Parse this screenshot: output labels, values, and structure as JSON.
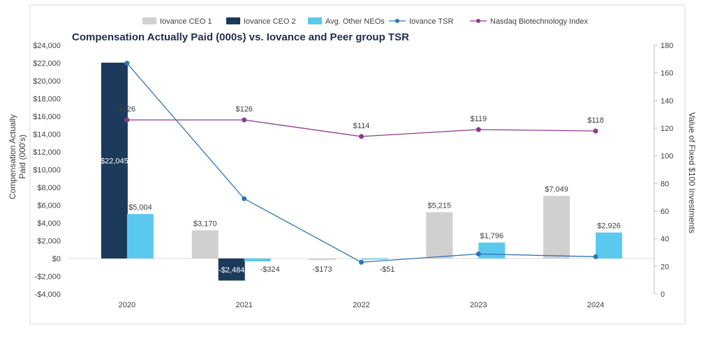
{
  "chart_data": {
    "type": "bar+line",
    "title": "Compensation Actually Paid (000s) vs. Iovance and Peer group TSR",
    "categories": [
      "2020",
      "2021",
      "2022",
      "2023",
      "2024"
    ],
    "ylabel_left_line1": "Compensation Actually",
    "ylabel_left_line2": "Paid (000's)",
    "ylabel_right": "Value of Fixed $100 Investments",
    "ylim_left": [
      -4000,
      24000
    ],
    "ylim_right": [
      0,
      180
    ],
    "yticks_left": [
      -4000,
      -2000,
      0,
      2000,
      4000,
      6000,
      8000,
      10000,
      12000,
      14000,
      16000,
      18000,
      20000,
      22000,
      24000
    ],
    "ytick_labels_left": [
      "-$4,000",
      "-$2,000",
      "$0",
      "$2,000",
      "$4,000",
      "$6,000",
      "$8,000",
      "$10,000",
      "$12,000",
      "$14,000",
      "$16,000",
      "$18,000",
      "$20,000",
      "$22,000",
      "$24,000"
    ],
    "yticks_right": [
      0,
      20,
      40,
      60,
      80,
      100,
      120,
      140,
      160,
      180
    ],
    "ytick_labels_right": [
      "0",
      "20",
      "40",
      "60",
      "80",
      "100",
      "120",
      "140",
      "160",
      "180"
    ],
    "bar_series": [
      {
        "name": "Iovance CEO 1",
        "color": "#d0d0d0",
        "values": [
          null,
          3170,
          -173,
          5215,
          7049
        ],
        "labels": [
          "",
          "$3,170",
          "-$173",
          "$5,215",
          "$7,049"
        ]
      },
      {
        "name": "Iovance CEO 2",
        "color": "#1b3a5c",
        "values": [
          22045,
          -2484,
          null,
          null,
          null
        ],
        "labels": [
          "$22,045",
          "-$2,484",
          "",
          "",
          ""
        ]
      },
      {
        "name": "Avg. Other NEOs",
        "color": "#5bc8f0",
        "values": [
          5004,
          -324,
          -51,
          1796,
          2926
        ],
        "labels": [
          "$5,004",
          "-$324",
          "-$51",
          "$1,796",
          "$2,926"
        ]
      }
    ],
    "line_series": [
      {
        "name": "Iovance TSR",
        "color": "#2e75b6",
        "values": [
          167,
          69,
          23,
          29,
          27
        ]
      },
      {
        "name": "Nasdaq Biotechnology Index",
        "color": "#8e3a8e",
        "values": [
          126,
          126,
          114,
          119,
          118
        ],
        "labels": [
          "$126",
          "$126",
          "$114",
          "$119",
          "$118"
        ]
      }
    ],
    "legend_position": "top-center"
  }
}
